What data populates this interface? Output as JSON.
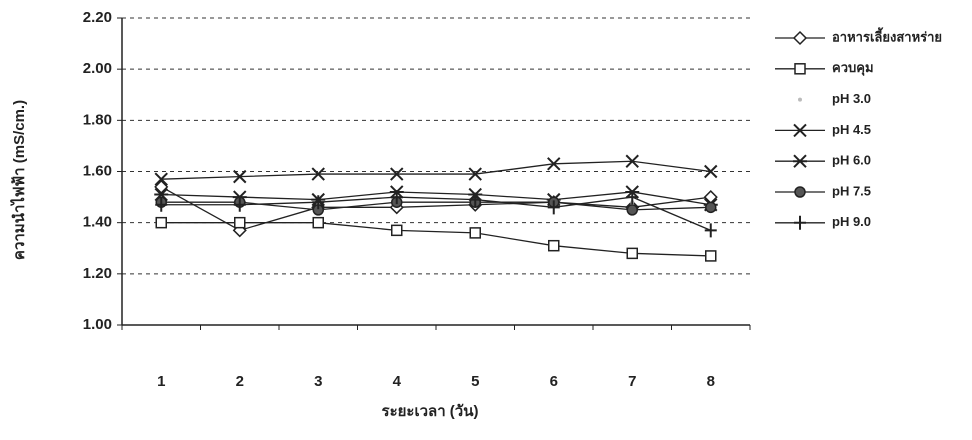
{
  "chart_data": {
    "type": "line",
    "xlabel": "ระยะเวลา (วัน)",
    "ylabel": "ความนำไฟฟ้า (mS/cm.)",
    "categories": [
      "1",
      "2",
      "3",
      "4",
      "5",
      "6",
      "7",
      "8"
    ],
    "series": [
      {
        "name": "อาหารเลี้ยงสาหร่าย",
        "color": "#222222",
        "marker": "diamond",
        "values": [
          1.54,
          1.37,
          1.46,
          1.46,
          1.47,
          1.48,
          1.46,
          1.5
        ]
      },
      {
        "name": "ควบคุม",
        "color": "#222222",
        "marker": "square",
        "values": [
          1.4,
          1.4,
          1.4,
          1.37,
          1.36,
          1.31,
          1.28,
          1.27
        ]
      },
      {
        "name": "pH 3.0",
        "color": "#bbbbbb",
        "marker": "dot",
        "values": [
          1.49,
          1.48,
          1.47,
          1.49,
          1.48,
          1.47,
          1.48,
          1.47
        ]
      },
      {
        "name": "pH 4.5",
        "color": "#222222",
        "marker": "x",
        "values": [
          1.57,
          1.58,
          1.59,
          1.59,
          1.59,
          1.63,
          1.64,
          1.6
        ]
      },
      {
        "name": "pH 6.0",
        "color": "#222222",
        "marker": "asterisk",
        "values": [
          1.51,
          1.5,
          1.49,
          1.52,
          1.51,
          1.49,
          1.52,
          1.47
        ]
      },
      {
        "name": "pH 7.5",
        "color": "#222222",
        "marker": "circle",
        "values": [
          1.48,
          1.48,
          1.45,
          1.48,
          1.48,
          1.48,
          1.45,
          1.46
        ]
      },
      {
        "name": "pH 9.0",
        "color": "#222222",
        "marker": "plus",
        "values": [
          1.47,
          1.47,
          1.48,
          1.5,
          1.49,
          1.46,
          1.5,
          1.37
        ]
      }
    ],
    "ylim": [
      1.0,
      2.2
    ],
    "yticks": [
      {
        "value": 1.0,
        "label": "1.00"
      },
      {
        "value": 1.2,
        "label": "1.20"
      },
      {
        "value": 1.4,
        "label": "1.40"
      },
      {
        "value": 1.6,
        "label": "1.60"
      },
      {
        "value": 1.8,
        "label": "1.80"
      },
      {
        "value": 2.0,
        "label": "2.00"
      },
      {
        "value": 2.2,
        "label": "2.20"
      }
    ],
    "grid": true,
    "legend": "right"
  }
}
